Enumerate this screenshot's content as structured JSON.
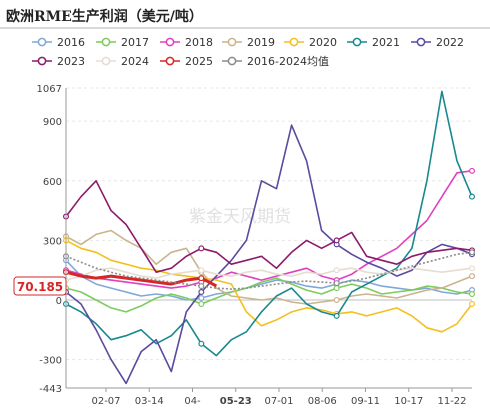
{
  "title": "欧洲RME生产利润（美元/吨）",
  "watermark": "紫金天风期货",
  "chart_data": {
    "type": "line",
    "ylim": [
      -443,
      1067
    ],
    "yticks": [
      -443,
      -300,
      0,
      300,
      600,
      900,
      1067
    ],
    "xticks": [
      "02-07",
      "03-14",
      "04-",
      "05-23",
      "07-01",
      "08-06",
      "09-11",
      "10-17",
      "11-22"
    ],
    "highlight_x_label": "05-23",
    "highlight_value": "70.185",
    "series": [
      {
        "name": "2016",
        "color": "#7fa8d8",
        "values": [
          200,
          120,
          80,
          60,
          40,
          20,
          30,
          20,
          0,
          10,
          30,
          40,
          60,
          80,
          100,
          90,
          70,
          60,
          80,
          100,
          90,
          70,
          60,
          50,
          60,
          40,
          30,
          50
        ]
      },
      {
        "name": "2017",
        "color": "#7ccc5c",
        "values": [
          60,
          40,
          0,
          -40,
          -60,
          -30,
          10,
          30,
          10,
          -20,
          10,
          40,
          60,
          90,
          110,
          80,
          50,
          30,
          60,
          80,
          60,
          30,
          40,
          50,
          70,
          60,
          40,
          30
        ]
      },
      {
        "name": "2018",
        "color": "#e040c0",
        "values": [
          150,
          130,
          110,
          100,
          90,
          80,
          70,
          60,
          70,
          90,
          110,
          140,
          120,
          100,
          120,
          140,
          160,
          120,
          100,
          130,
          180,
          220,
          260,
          330,
          400,
          520,
          640,
          650
        ]
      },
      {
        "name": "2019",
        "color": "#c9b48c",
        "values": [
          320,
          280,
          330,
          350,
          300,
          260,
          180,
          240,
          260,
          140,
          60,
          20,
          10,
          0,
          10,
          -10,
          -20,
          -10,
          0,
          20,
          30,
          20,
          10,
          30,
          50,
          60,
          90,
          120
        ]
      },
      {
        "name": "2020",
        "color": "#f2c01e",
        "values": [
          300,
          260,
          240,
          200,
          180,
          160,
          150,
          130,
          120,
          110,
          100,
          80,
          -60,
          -130,
          -100,
          -60,
          -40,
          -50,
          -70,
          -60,
          -80,
          -60,
          -40,
          -80,
          -140,
          -160,
          -120,
          -20
        ]
      },
      {
        "name": "2021",
        "color": "#17898f",
        "values": [
          -20,
          -60,
          -120,
          -200,
          -180,
          -150,
          -220,
          -180,
          -100,
          -220,
          -280,
          -200,
          -160,
          -60,
          20,
          60,
          -20,
          -60,
          -80,
          40,
          80,
          120,
          160,
          260,
          600,
          1050,
          700,
          520
        ]
      },
      {
        "name": "2022",
        "color": "#5b4a9f",
        "values": [
          40,
          -20,
          -150,
          -300,
          -420,
          -260,
          -200,
          -360,
          -60,
          40,
          120,
          200,
          300,
          600,
          560,
          880,
          700,
          350,
          280,
          230,
          190,
          160,
          120,
          150,
          240,
          280,
          260,
          230
        ]
      },
      {
        "name": "2023",
        "color": "#8c1a6b",
        "values": [
          420,
          520,
          600,
          450,
          380,
          260,
          140,
          160,
          220,
          260,
          240,
          180,
          200,
          220,
          160,
          240,
          300,
          260,
          300,
          340,
          220,
          200,
          180,
          220,
          240,
          250,
          260,
          250
        ]
      },
      {
        "name": "2024",
        "color": "#e6ddd0",
        "values": [
          100,
          120,
          150,
          160,
          140,
          120,
          110,
          130,
          140,
          150,
          130,
          120,
          140,
          150,
          130,
          120,
          140,
          130,
          150,
          160,
          140,
          130,
          150,
          160,
          150,
          140,
          150,
          160
        ]
      },
      {
        "name": "2025",
        "color": "#d62728",
        "values": [
          140,
          120,
          110,
          120,
          110,
          100,
          90,
          80,
          100,
          110,
          70.185
        ]
      },
      {
        "name": "2016-2024均值",
        "color": "#8c8c8c",
        "values": [
          220,
          190,
          160,
          140,
          120,
          110,
          100,
          90,
          80,
          70,
          60,
          55,
          60,
          70,
          80,
          90,
          95,
          90,
          85,
          95,
          110,
          130,
          150,
          170,
          190,
          210,
          230,
          240
        ]
      }
    ]
  }
}
